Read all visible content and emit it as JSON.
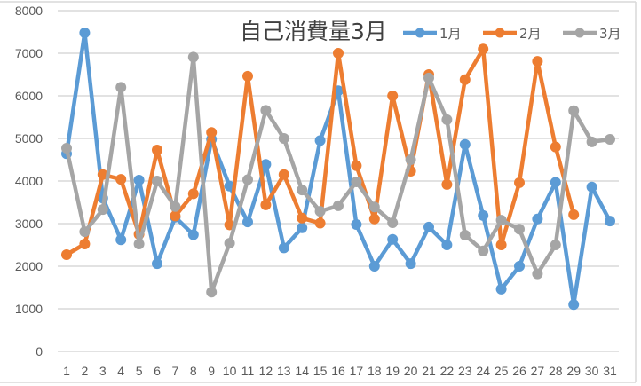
{
  "chart_data": {
    "type": "line",
    "title": "自己消費量3月",
    "xlabel": "",
    "ylabel": "",
    "ylim": [
      0,
      8000
    ],
    "yticks": [
      0,
      1000,
      2000,
      3000,
      4000,
      5000,
      6000,
      7000,
      8000
    ],
    "grid": true,
    "legend_position": "top-right (inline with title)",
    "categories": [
      "1",
      "2",
      "3",
      "4",
      "5",
      "6",
      "7",
      "8",
      "9",
      "10",
      "11",
      "12",
      "13",
      "14",
      "15",
      "16",
      "17",
      "18",
      "19",
      "20",
      "21",
      "22",
      "23",
      "24",
      "25",
      "26",
      "27",
      "28",
      "29",
      "30",
      "31"
    ],
    "series": [
      {
        "name": "1月",
        "color": "#5B9BD5",
        "values": [
          4640,
          7480,
          3600,
          2620,
          4020,
          2060,
          3150,
          2740,
          4980,
          3880,
          3040,
          4390,
          2430,
          2900,
          4950,
          6120,
          2980,
          2000,
          2630,
          2060,
          2920,
          2500,
          4860,
          3190,
          1460,
          2000,
          3110,
          3970,
          1100,
          3860,
          3060
        ]
      },
      {
        "name": "2月",
        "color": "#ED7D31",
        "values": [
          2270,
          2520,
          4150,
          4040,
          2750,
          4730,
          3180,
          3700,
          5140,
          2970,
          6460,
          3440,
          4150,
          3130,
          3010,
          7000,
          4360,
          3110,
          6000,
          4230,
          6500,
          3920,
          6380,
          7100,
          2500,
          3960,
          6810,
          4800,
          3210,
          null,
          null
        ]
      },
      {
        "name": "3月",
        "color": "#A5A5A5",
        "values": [
          4770,
          2810,
          3330,
          6200,
          2520,
          4000,
          3400,
          6910,
          1390,
          2540,
          4030,
          5660,
          5000,
          3790,
          3290,
          3420,
          3980,
          3390,
          3020,
          4500,
          6420,
          5440,
          2730,
          2360,
          3080,
          2870,
          1820,
          2500,
          5650,
          4920,
          4980
        ]
      }
    ]
  },
  "chart": {
    "title": "自己消費量3月",
    "legend": [
      {
        "label": "1月",
        "color": "#5B9BD5"
      },
      {
        "label": "2月",
        "color": "#ED7D31"
      },
      {
        "label": "3月",
        "color": "#A5A5A5"
      }
    ],
    "y_tick_labels": [
      "0",
      "1000",
      "2000",
      "3000",
      "4000",
      "5000",
      "6000",
      "7000",
      "8000"
    ],
    "x_tick_labels": [
      "1",
      "2",
      "3",
      "4",
      "5",
      "6",
      "7",
      "8",
      "9",
      "10",
      "11",
      "12",
      "13",
      "14",
      "15",
      "16",
      "17",
      "18",
      "19",
      "20",
      "21",
      "22",
      "23",
      "24",
      "25",
      "26",
      "27",
      "28",
      "29",
      "30",
      "31"
    ],
    "gridline_color": "#D9D9D9",
    "axis_text_color": "#595959"
  }
}
